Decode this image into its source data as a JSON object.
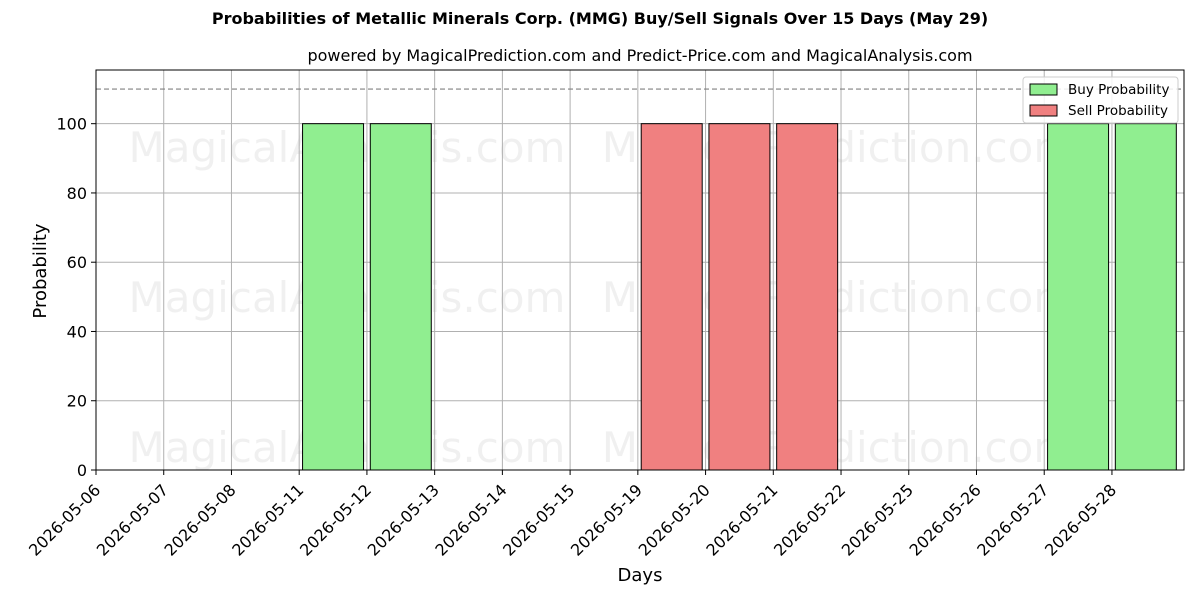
{
  "chart_data": {
    "type": "bar",
    "title": "Probabilities of Metallic Minerals Corp. (MMG) Buy/Sell Signals Over 15 Days (May 29)",
    "subtitle": "powered by MagicalPrediction.com and Predict-Price.com and MagicalAnalysis.com",
    "xlabel": "Days",
    "ylabel": "Probability",
    "categories": [
      "2026-05-06",
      "2026-05-07",
      "2026-05-08",
      "2026-05-11",
      "2026-05-12",
      "2026-05-13",
      "2026-05-14",
      "2026-05-15",
      "2026-05-19",
      "2026-05-20",
      "2026-05-21",
      "2026-05-22",
      "2026-05-25",
      "2026-05-26",
      "2026-05-27",
      "2026-05-28"
    ],
    "series": [
      {
        "name": "Buy Probability",
        "color": "#90ee90",
        "values": [
          0,
          0,
          0,
          100,
          100,
          0,
          0,
          0,
          0,
          0,
          0,
          0,
          0,
          0,
          100,
          100
        ]
      },
      {
        "name": "Sell Probability",
        "color": "#f08080",
        "values": [
          0,
          0,
          0,
          0,
          0,
          0,
          0,
          0,
          100,
          100,
          100,
          0,
          0,
          0,
          0,
          0
        ]
      }
    ],
    "ylim": [
      0,
      115.5
    ],
    "yticks": [
      0,
      20,
      40,
      60,
      80,
      100
    ],
    "reference_line": 110,
    "grid": true,
    "legend_position": "top-right",
    "watermarks": [
      "MagicalAnalysis.com",
      "MagicalPrediction.com"
    ]
  }
}
